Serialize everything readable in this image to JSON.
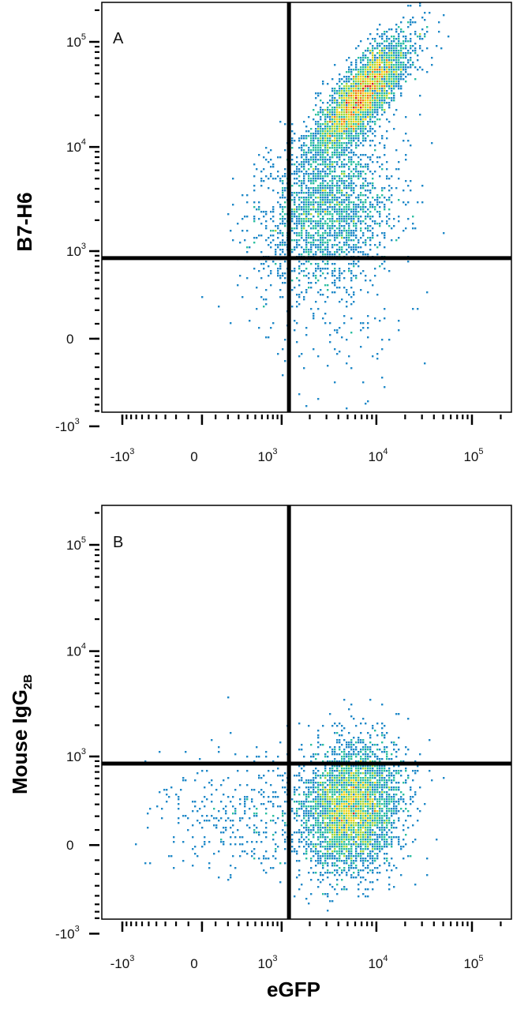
{
  "chart_data": [
    {
      "type": "scatter",
      "panel_letter": "A",
      "xlabel": "",
      "ylabel": "B7-H6",
      "ylabel_sub": "",
      "x_scale": "biexponential",
      "y_scale": "biexponential",
      "x_tick_labels": [
        {
          "base": "-10",
          "exp": "3"
        },
        {
          "base": "0",
          "exp": ""
        },
        {
          "base": "10",
          "exp": "3"
        },
        {
          "base": "10",
          "exp": "4"
        },
        {
          "base": "10",
          "exp": "5"
        }
      ],
      "y_tick_labels": [
        {
          "base": "10",
          "exp": "5"
        },
        {
          "base": "10",
          "exp": "4"
        },
        {
          "base": "10",
          "exp": "3"
        },
        {
          "base": "0",
          "exp": ""
        },
        {
          "base": "-10",
          "exp": "3"
        }
      ],
      "quadrant_gate": {
        "x": 1200,
        "y": 850
      },
      "density_colormap": [
        "#1f3fb5",
        "#1e88c8",
        "#2bbfa0",
        "#a8d83a",
        "#f2d21a",
        "#f07a14",
        "#d8201c"
      ],
      "populations": [
        {
          "cx": 7000,
          "cy": 30000,
          "spread_x": 0.25,
          "spread_y": 0.28,
          "corr": 0.8,
          "count": 3600
        },
        {
          "cx": 3000,
          "cy": 2600,
          "spread_x": 0.34,
          "spread_y": 0.34,
          "corr": 0.2,
          "count": 2000
        },
        {
          "cx": 2500,
          "cy": 400,
          "spread_x": 0.45,
          "spread_y": 0.5,
          "corr": 0.0,
          "count": 250
        }
      ]
    },
    {
      "type": "scatter",
      "panel_letter": "B",
      "xlabel": "eGFP",
      "ylabel": "Mouse IgG",
      "ylabel_sub": "2B",
      "x_scale": "biexponential",
      "y_scale": "biexponential",
      "x_tick_labels": [
        {
          "base": "-10",
          "exp": "3"
        },
        {
          "base": "0",
          "exp": ""
        },
        {
          "base": "10",
          "exp": "3"
        },
        {
          "base": "10",
          "exp": "4"
        },
        {
          "base": "10",
          "exp": "5"
        }
      ],
      "y_tick_labels": [
        {
          "base": "10",
          "exp": "5"
        },
        {
          "base": "10",
          "exp": "4"
        },
        {
          "base": "10",
          "exp": "3"
        },
        {
          "base": "0",
          "exp": ""
        },
        {
          "base": "-10",
          "exp": "3"
        }
      ],
      "quadrant_gate": {
        "x": 1200,
        "y": 850
      },
      "density_colormap": [
        "#1f3fb5",
        "#1e88c8",
        "#2bbfa0",
        "#a8d83a",
        "#f2d21a",
        "#f07a14",
        "#d8201c"
      ],
      "populations": [
        {
          "cx": 5500,
          "cy": 270,
          "spread_x": 0.25,
          "spread_y": 0.3,
          "corr": 0.1,
          "count": 3800
        },
        {
          "cx": 600,
          "cy": 240,
          "spread_x": 0.55,
          "spread_y": 0.3,
          "corr": 0.0,
          "count": 450
        }
      ]
    }
  ]
}
